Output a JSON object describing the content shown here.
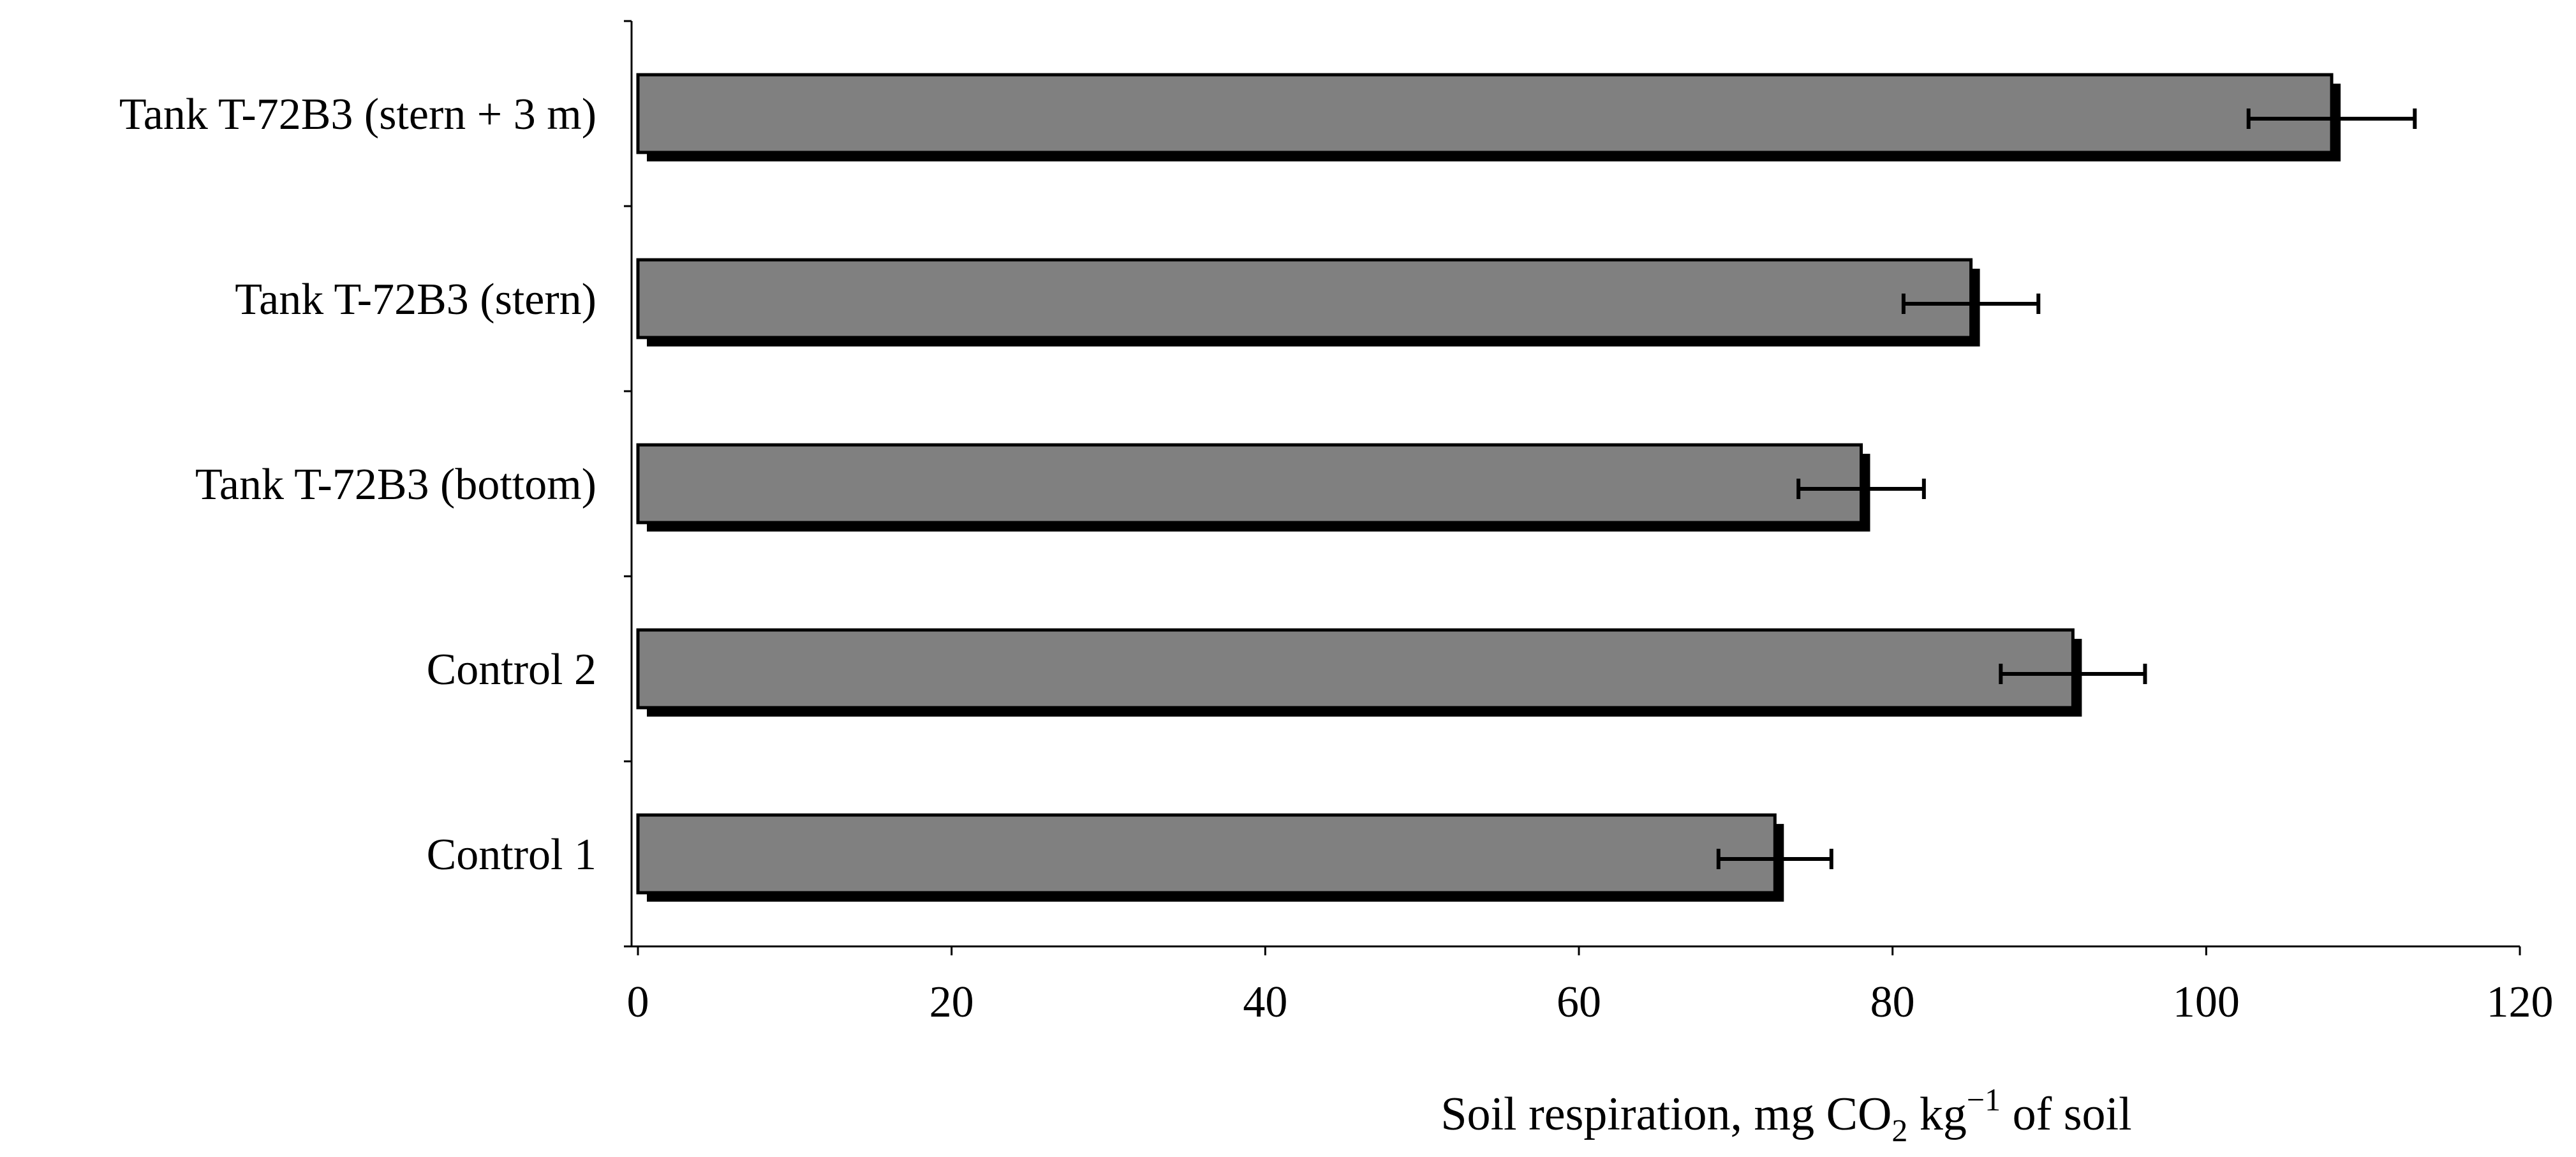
{
  "chart_data": {
    "type": "bar",
    "orientation": "horizontal",
    "categories": [
      "Tank T-72B3 (stern + 3 m)",
      "Tank T-72B3 (stern)",
      "Tank T-72B3 (bottom)",
      "Control 2",
      "Control 1"
    ],
    "series": [
      {
        "values": [
          108,
          85,
          78,
          91.5,
          72.5
        ],
        "errors": [
          5.3,
          4.3,
          4.0,
          4.6,
          3.6
        ]
      }
    ],
    "xlim": [
      0,
      120
    ],
    "xticks": [
      "0",
      "20",
      "40",
      "60",
      "80",
      "100",
      "120"
    ],
    "xlabel": {
      "prefix": "Soil respiration, mg CO",
      "subscript": "2",
      "middle": " kg",
      "superscript": "−1",
      "suffix": " of soil"
    },
    "ylabel": "",
    "title": "",
    "grid": false,
    "legend": "none",
    "colors": {
      "bar_fill": "#808080",
      "bar_shadow": "#000000",
      "axis": "#000000"
    }
  }
}
